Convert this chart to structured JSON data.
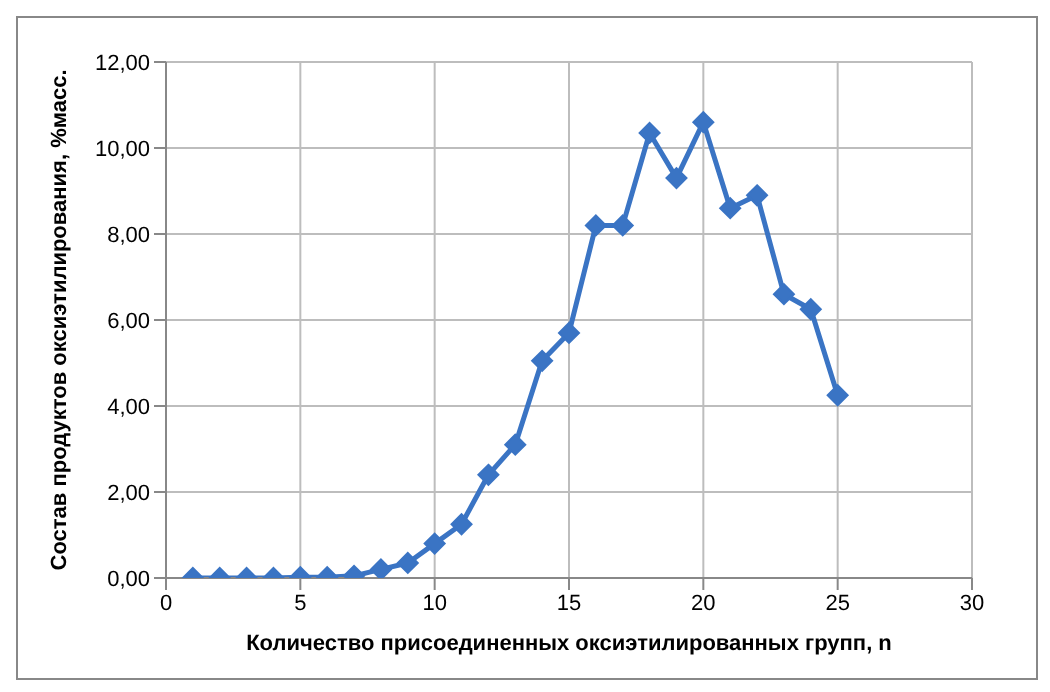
{
  "chart_data": {
    "type": "line",
    "xlabel": "Количество присоединенных оксиэтилированных групп, n",
    "ylabel": "Состав продуктов оксиэтилирования, %масс.",
    "x": [
      1,
      2,
      3,
      4,
      5,
      6,
      7,
      8,
      9,
      10,
      11,
      12,
      13,
      14,
      15,
      16,
      17,
      18,
      19,
      20,
      21,
      22,
      23,
      24,
      25
    ],
    "series": [
      {
        "color": "#3a74c4",
        "values": [
          0,
          0,
          0,
          0,
          0.02,
          0.02,
          0.05,
          0.2,
          0.35,
          0.8,
          1.25,
          2.4,
          3.1,
          5.05,
          5.7,
          8.2,
          8.2,
          10.35,
          9.3,
          10.6,
          8.6,
          8.9,
          6.6,
          6.25,
          4.25
        ]
      }
    ],
    "xlim": [
      0,
      30
    ],
    "xticks": [
      0,
      5,
      10,
      15,
      20,
      25,
      30
    ],
    "ylim": [
      0,
      12
    ],
    "yticks": [
      {
        "value": 0,
        "label": "0,00"
      },
      {
        "value": 2,
        "label": "2,00"
      },
      {
        "value": 4,
        "label": "4,00"
      },
      {
        "value": 6,
        "label": "6,00"
      },
      {
        "value": 8,
        "label": "8,00"
      },
      {
        "value": 10,
        "label": "10,00"
      },
      {
        "value": 12,
        "label": "12,00"
      }
    ],
    "grid": true,
    "marker": "diamond",
    "line_style": "solid",
    "legend": false
  }
}
